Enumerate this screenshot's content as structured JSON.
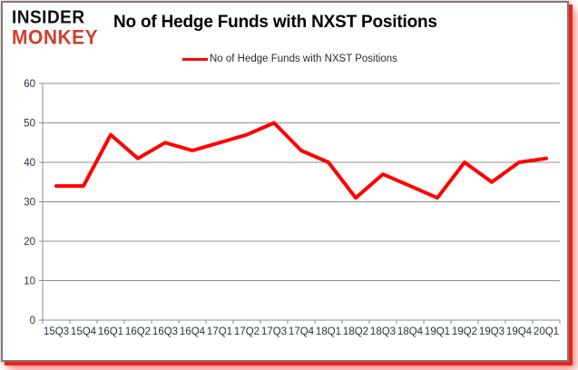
{
  "logo": {
    "line1": "INSIDER",
    "line2": "MONKEY"
  },
  "header": {
    "title": "No of Hedge Funds with NXST Positions"
  },
  "legend": {
    "label": "No of Hedge Funds with NXST Positions",
    "line_color": "#ff0000"
  },
  "colors": {
    "series": "#ff0000",
    "grid": "#8c8c8c",
    "axis_text": "#253246",
    "frame_border": "#7a7a7a",
    "frame_glow": "#e8251a",
    "logo_red": "#d0402e",
    "title_text": "#000000"
  },
  "chart_data": {
    "type": "line",
    "title": "No of Hedge Funds with NXST Positions",
    "categories": [
      "15Q3",
      "15Q4",
      "16Q1",
      "16Q2",
      "16Q3",
      "16Q4",
      "17Q1",
      "17Q2",
      "17Q3",
      "17Q4",
      "18Q1",
      "18Q2",
      "18Q3",
      "18Q4",
      "19Q1",
      "19Q2",
      "19Q3",
      "19Q4",
      "20Q1"
    ],
    "series": [
      {
        "name": "No of Hedge Funds with NXST Positions",
        "color": "#ff0000",
        "values": [
          34,
          34,
          47,
          41,
          45,
          43,
          45,
          47,
          50,
          43,
          40,
          31,
          37,
          34,
          31,
          40,
          35,
          40,
          41
        ]
      }
    ],
    "xlabel": "",
    "ylabel": "",
    "ylim": [
      0,
      60
    ],
    "ytick_step": 10,
    "yticks": [
      0,
      10,
      20,
      30,
      40,
      50,
      60
    ],
    "grid": true,
    "legend_position": "top-center"
  }
}
